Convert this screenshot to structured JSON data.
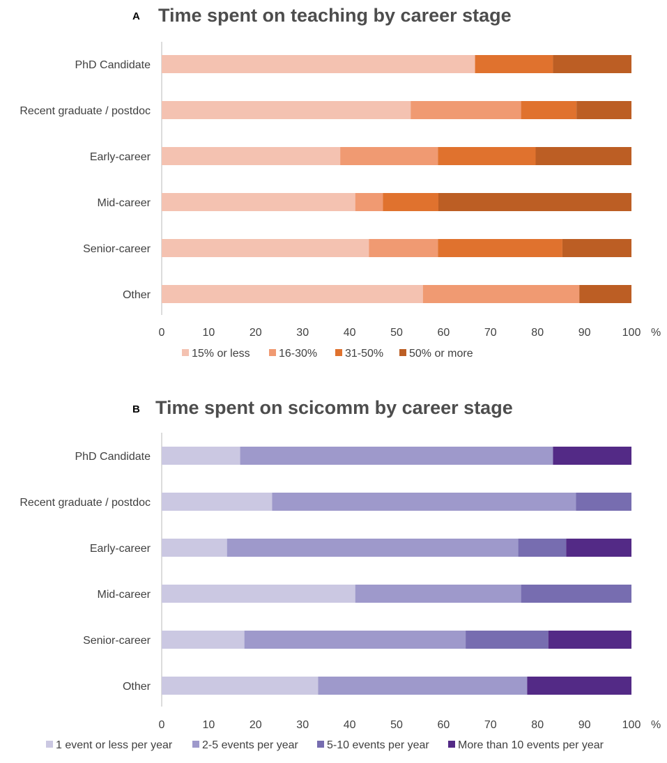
{
  "chart_data": [
    {
      "type": "bar",
      "orientation": "horizontal",
      "stacked": true,
      "panel": "A",
      "title": "Time spent on teaching by career stage",
      "categories": [
        "PhD Candidate",
        "Recent graduate / postdoc",
        "Early-career",
        "Mid-career",
        "Senior-career",
        "Other"
      ],
      "series": [
        {
          "name": "15% or less",
          "color": "#f4c2b1",
          "values": [
            66.7,
            53.0,
            38.0,
            41.2,
            44.1,
            55.6
          ]
        },
        {
          "name": "16-30%",
          "color": "#f09a72",
          "values": [
            0,
            23.5,
            20.8,
            5.9,
            14.7,
            33.3
          ]
        },
        {
          "name": "31-50%",
          "color": "#e0722e",
          "values": [
            16.6,
            11.8,
            20.8,
            11.8,
            26.5,
            0
          ]
        },
        {
          "name": "50% or more",
          "color": "#bc5e24",
          "values": [
            16.7,
            11.7,
            20.4,
            41.1,
            14.7,
            11.1
          ]
        }
      ],
      "x_ticks": [
        "0",
        "10",
        "20",
        "30",
        "40",
        "50",
        "60",
        "70",
        "80",
        "90",
        "100"
      ],
      "xlim": [
        0,
        100
      ],
      "xunit": "%",
      "legend_position": "bottom"
    },
    {
      "type": "bar",
      "orientation": "horizontal",
      "stacked": true,
      "panel": "B",
      "title": "Time spent on scicomm by career stage",
      "categories": [
        "PhD Candidate",
        "Recent graduate / postdoc",
        "Early-career",
        "Mid-career",
        "Senior-career",
        "Other"
      ],
      "series": [
        {
          "name": "1 event or less per year",
          "color": "#cbc8e2",
          "values": [
            16.7,
            23.5,
            13.9,
            41.2,
            17.6,
            33.3
          ]
        },
        {
          "name": "2-5 events per year",
          "color": "#9e99cb",
          "values": [
            66.6,
            64.7,
            62.0,
            35.3,
            47.1,
            44.5
          ]
        },
        {
          "name": "5-10 events per year",
          "color": "#776db0",
          "values": [
            0,
            11.8,
            10.2,
            23.5,
            17.6,
            0
          ]
        },
        {
          "name": "More than 10 events per year",
          "color": "#532a86",
          "values": [
            16.7,
            0,
            13.9,
            0,
            17.7,
            22.2
          ]
        }
      ],
      "x_ticks": [
        "0",
        "10",
        "20",
        "30",
        "40",
        "50",
        "60",
        "70",
        "80",
        "90",
        "100"
      ],
      "xlim": [
        0,
        100
      ],
      "xunit": "%",
      "legend_position": "bottom"
    }
  ]
}
